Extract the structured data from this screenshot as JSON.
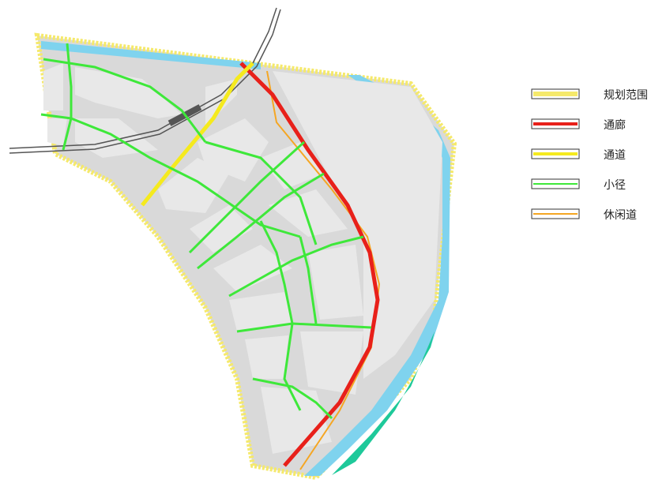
{
  "legend": [
    {
      "key": "boundary",
      "label": "规划范围",
      "color": "#f5e96b"
    },
    {
      "key": "corridor",
      "label": "通廊",
      "color": "#e8201a"
    },
    {
      "key": "channel",
      "label": "通道",
      "color": "#f5ea1e"
    },
    {
      "key": "path",
      "label": "小径",
      "color": "#3ee83a"
    },
    {
      "key": "leisure",
      "label": "休闲道",
      "color": "#f5a623"
    }
  ],
  "colors": {
    "land": "#d9d9d9",
    "block": "#e8e8e8",
    "river": "#7fd3ee",
    "riverbank": "#1ec99a",
    "railway": "#555555"
  }
}
